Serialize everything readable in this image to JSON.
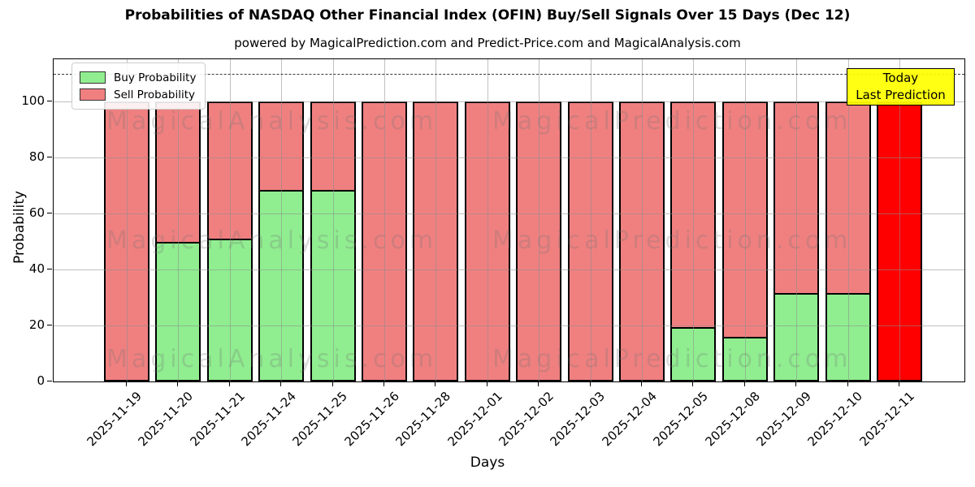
{
  "chart_data": {
    "type": "bar",
    "stacked": true,
    "title": "Probabilities of NASDAQ Other Financial Index (OFIN) Buy/Sell Signals Over 15 Days (Dec 12)",
    "subtitle": "powered by MagicalPrediction.com and Predict-Price.com and MagicalAnalysis.com",
    "xlabel": "Days",
    "ylabel": "Probability",
    "ylim": [
      0,
      115.2
    ],
    "yticks": [
      0,
      20,
      40,
      60,
      80,
      100
    ],
    "grid": true,
    "dashed_reference_line_y": 110,
    "categories": [
      "2025-11-19",
      "2025-11-20",
      "2025-11-21",
      "2025-11-24",
      "2025-11-25",
      "2025-11-26",
      "2025-11-28",
      "2025-12-01",
      "2025-12-02",
      "2025-12-03",
      "2025-12-04",
      "2025-12-05",
      "2025-12-08",
      "2025-12-09",
      "2025-12-10",
      "2025-12-11"
    ],
    "series": [
      {
        "name": "Buy Probability",
        "color": "#90ee90",
        "values": [
          0,
          50,
          51,
          68.5,
          68.5,
          0,
          0,
          0,
          0,
          0,
          0,
          19.5,
          16,
          31.5,
          31.5,
          0
        ]
      },
      {
        "name": "Sell Probability",
        "color": "#f08080",
        "values": [
          100,
          50,
          49,
          31.5,
          31.5,
          100,
          100,
          100,
          100,
          100,
          100,
          80.5,
          84,
          68.5,
          68.5,
          100
        ]
      }
    ],
    "today_bar": {
      "category": "2025-12-11",
      "index": 15,
      "color": "#ff0000",
      "sell_value": 100
    },
    "legend": {
      "position": "upper left",
      "entries": [
        {
          "label": "Buy Probability",
          "color": "#90ee90"
        },
        {
          "label": "Sell Probability",
          "color": "#f08080"
        }
      ]
    },
    "annotation_box": {
      "line1": "Today",
      "line2": "Last Prediction",
      "bg_color": "#ffff00",
      "border_color": "#000000"
    },
    "watermarks": {
      "text_left": "MagicalAnalysis.com",
      "text_right": "MagicalPrediction.com",
      "color": "#6e6e6e"
    },
    "bar_edge_color": "#000000"
  }
}
